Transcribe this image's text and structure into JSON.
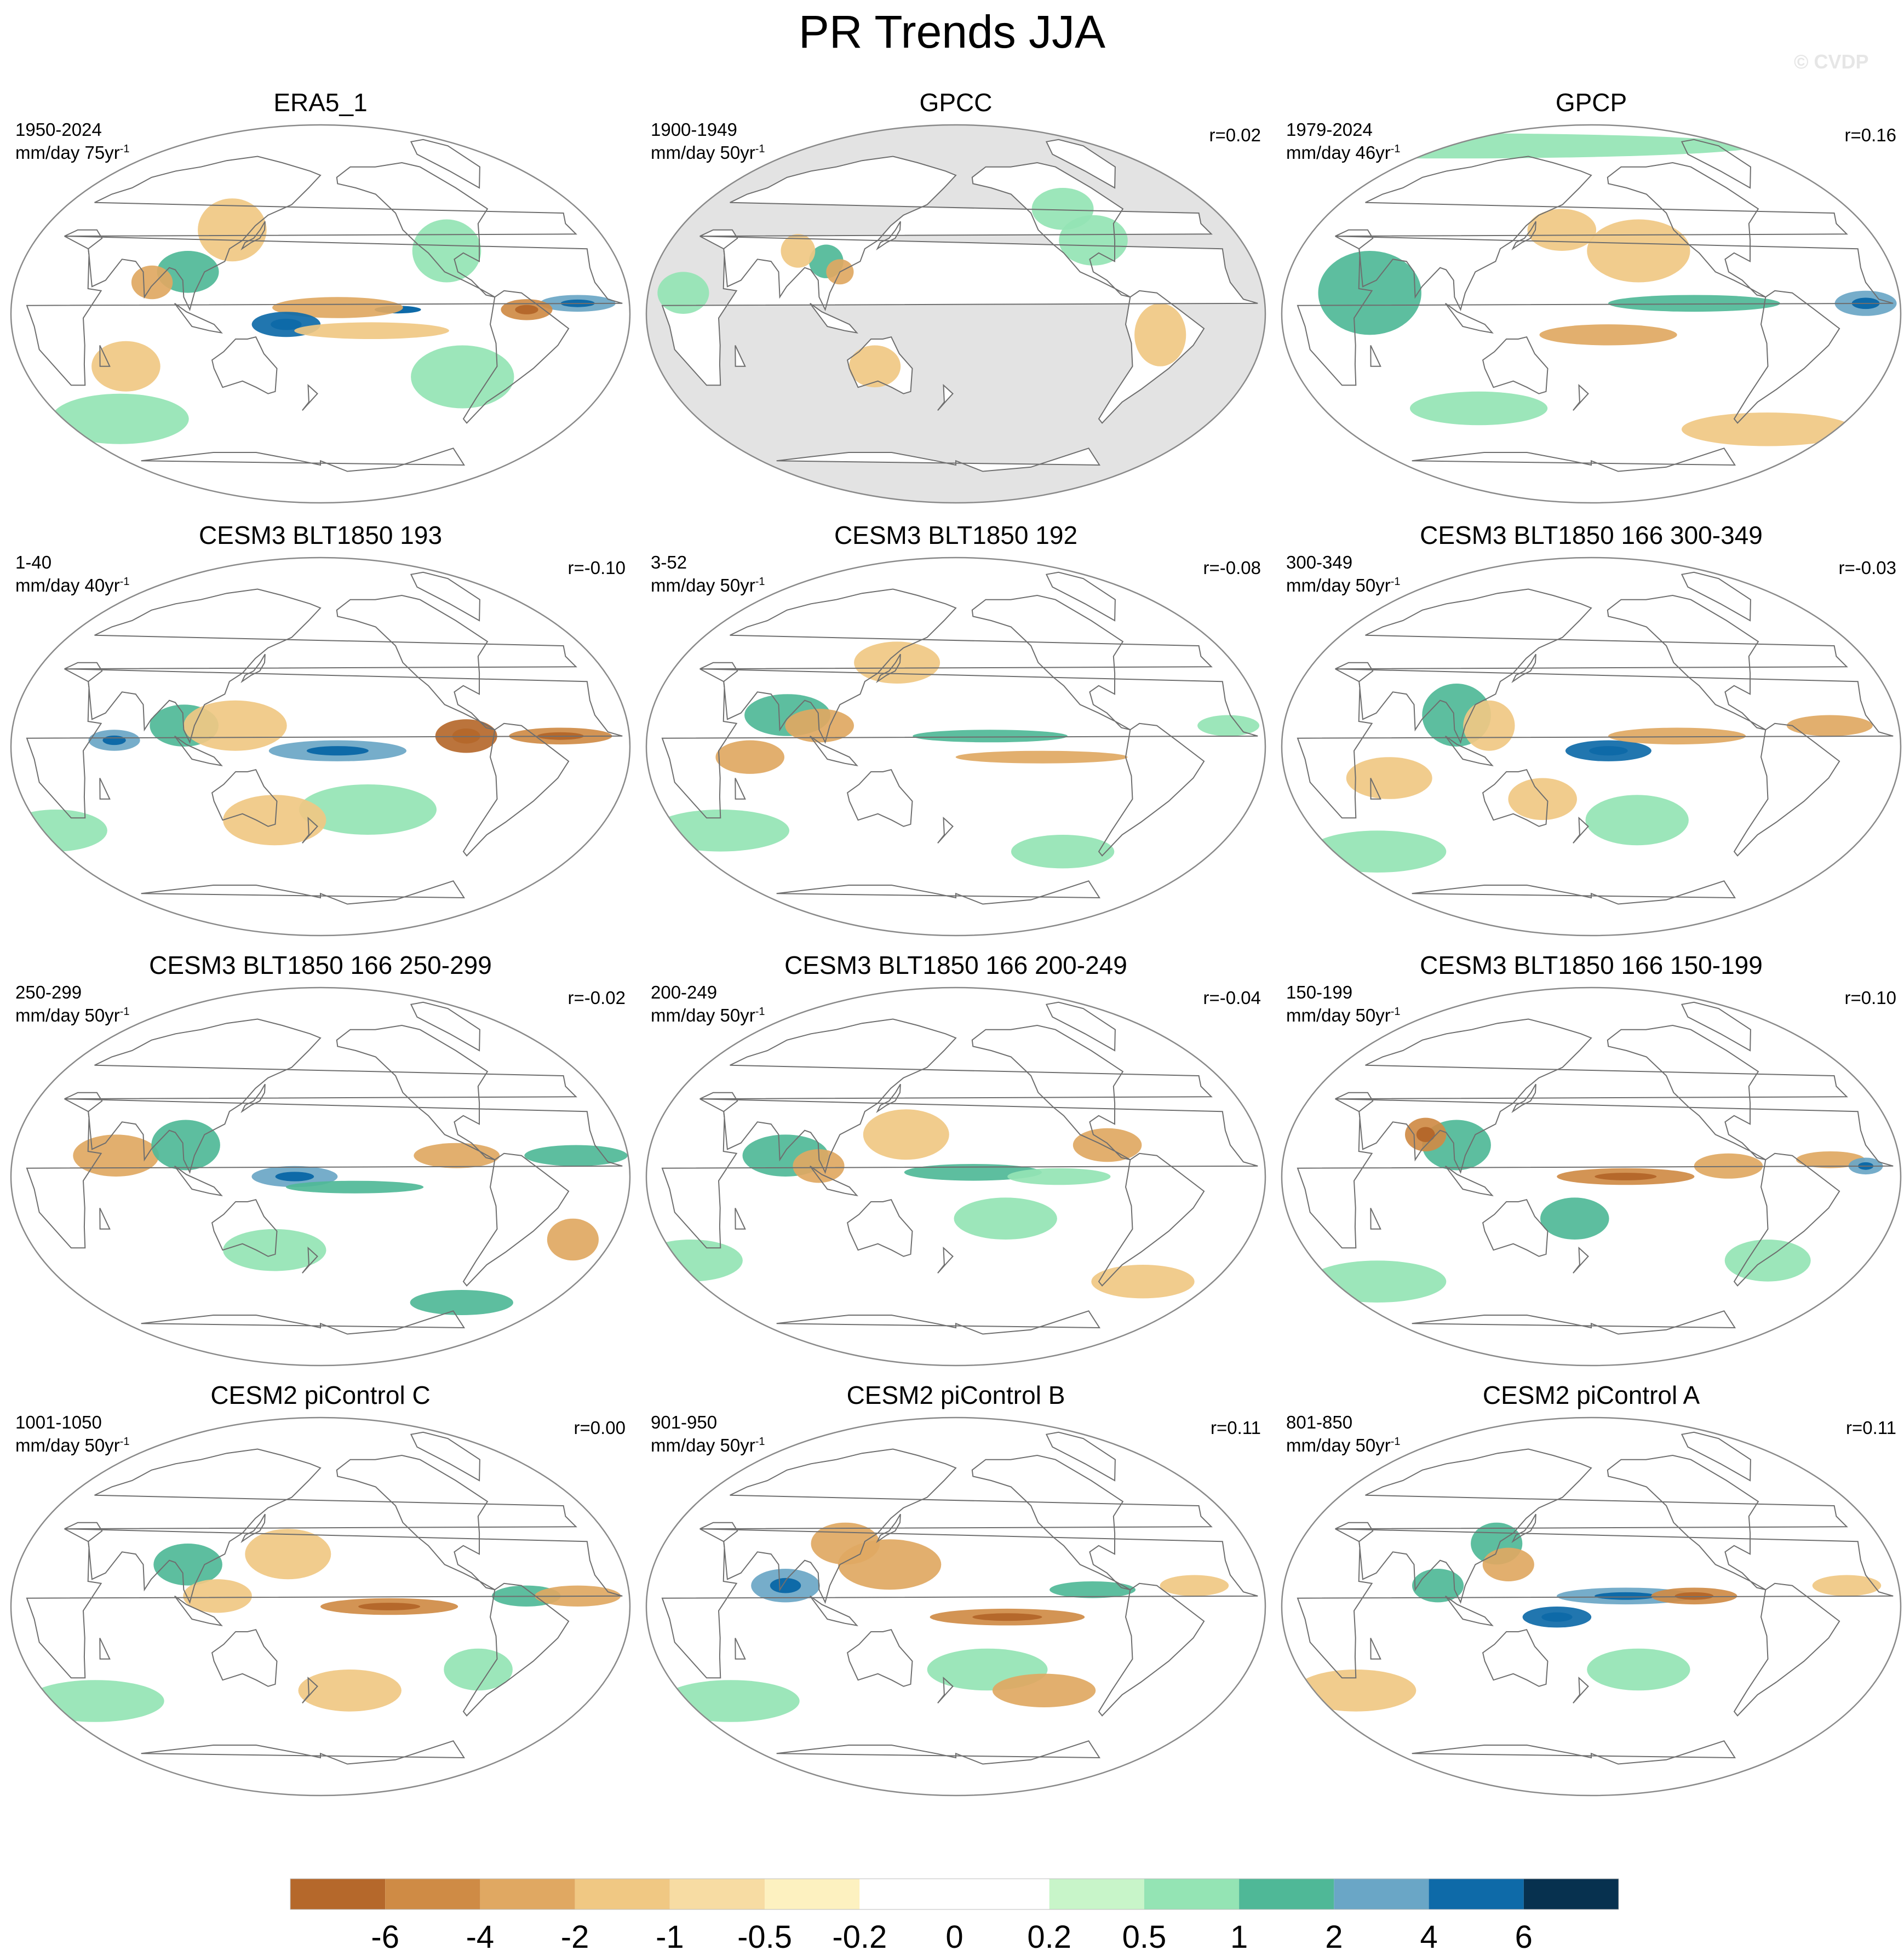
{
  "title": "PR Trends JJA",
  "watermark": "© CVDP",
  "colors": {
    "land_mask": "#e3e3e3",
    "coast": "#6e6e6e",
    "border": "#8a8a8a"
  },
  "colorbar": {
    "colors": [
      "#b5682b",
      "#cf8b45",
      "#e0a862",
      "#f0c883",
      "#f7dca3",
      "#fdf1c0",
      "#ffffff",
      "#ffffff",
      "#c8f5c9",
      "#94e4b4",
      "#4fb897",
      "#6aa6c6",
      "#0e6aa8",
      "#07314f"
    ],
    "labels": [
      "-6",
      "-4",
      "-2",
      "-1",
      "-0.5",
      "-0.2",
      "0",
      "0.2",
      "0.5",
      "1",
      "2",
      "4",
      "6"
    ]
  },
  "panels": [
    {
      "title": "ERA5_1",
      "period": "1950-2024",
      "units": "mm/day 75yr",
      "units_exp": "-1",
      "corr": "",
      "land_masked": false,
      "blobs": [
        [
          -135,
          2,
          30,
          4,
          7
        ],
        [
          -170,
          3,
          38,
          5,
          -2
        ],
        [
          160,
          -5,
          20,
          6,
          4
        ],
        [
          -30,
          5,
          22,
          4,
          3
        ],
        [
          -60,
          2,
          15,
          5,
          -3
        ],
        [
          100,
          20,
          18,
          10,
          2
        ],
        [
          80,
          15,
          12,
          8,
          -2
        ],
        [
          -150,
          -8,
          45,
          4,
          -1
        ],
        [
          -90,
          -30,
          30,
          15,
          1
        ],
        [
          30,
          -50,
          40,
          12,
          1
        ],
        [
          120,
          40,
          20,
          15,
          -1
        ],
        [
          -100,
          30,
          20,
          15,
          1
        ],
        [
          60,
          -25,
          20,
          12,
          -1
        ]
      ]
    },
    {
      "title": "GPCC",
      "period": "1900-1949",
      "units": "mm/day 50yr",
      "units_exp": "-1",
      "corr": "r=0.02",
      "land_masked": true,
      "blobs": [
        [
          100,
          25,
          10,
          8,
          2
        ],
        [
          110,
          20,
          8,
          6,
          -2
        ],
        [
          -90,
          35,
          20,
          12,
          1
        ],
        [
          -60,
          -10,
          15,
          15,
          -1
        ],
        [
          20,
          10,
          15,
          10,
          1
        ],
        [
          80,
          30,
          10,
          8,
          -1
        ],
        [
          130,
          -25,
          15,
          10,
          -1
        ],
        [
          -100,
          50,
          18,
          10,
          1
        ]
      ]
    },
    {
      "title": "GPCP",
      "period": "1979-2024",
      "units": "mm/day 46yr",
      "units_exp": "-1",
      "corr": "r=0.16",
      "land_masked": false,
      "blobs": [
        [
          0,
          80,
          180,
          6,
          1
        ],
        [
          50,
          10,
          30,
          20,
          2
        ],
        [
          -120,
          5,
          50,
          4,
          2
        ],
        [
          -170,
          -10,
          40,
          5,
          -2
        ],
        [
          -40,
          -55,
          50,
          8,
          -1
        ],
        [
          100,
          -45,
          40,
          8,
          1
        ],
        [
          -150,
          30,
          30,
          15,
          -1
        ],
        [
          -20,
          5,
          18,
          6,
          3
        ],
        [
          160,
          40,
          20,
          10,
          -1
        ]
      ]
    },
    {
      "title": "CESM3 BLT1850 193",
      "period": "1-40",
      "units": "mm/day 40yr",
      "units_exp": "-1",
      "corr": "r=-0.10",
      "land_masked": false,
      "blobs": [
        [
          -170,
          -2,
          40,
          5,
          3
        ],
        [
          -95,
          5,
          18,
          8,
          -4
        ],
        [
          -40,
          5,
          30,
          4,
          -3
        ],
        [
          100,
          10,
          20,
          10,
          2
        ],
        [
          60,
          3,
          15,
          5,
          3
        ],
        [
          130,
          10,
          30,
          12,
          -1
        ],
        [
          -150,
          -30,
          40,
          12,
          1
        ],
        [
          150,
          -35,
          30,
          12,
          -1
        ],
        [
          0,
          -40,
          30,
          10,
          1
        ]
      ]
    },
    {
      "title": "CESM3 BLT1850 192",
      "period": "3-52",
      "units": "mm/day 50yr",
      "units_exp": "-1",
      "corr": "r=-0.08",
      "land_masked": false,
      "blobs": [
        [
          -160,
          5,
          45,
          3,
          2
        ],
        [
          -130,
          -5,
          50,
          3,
          -2
        ],
        [
          80,
          15,
          25,
          10,
          2
        ],
        [
          100,
          10,
          20,
          8,
          -2
        ],
        [
          60,
          -5,
          20,
          8,
          -2
        ],
        [
          20,
          -40,
          40,
          10,
          1
        ],
        [
          -100,
          -50,
          30,
          8,
          1
        ],
        [
          140,
          40,
          25,
          10,
          -1
        ],
        [
          -20,
          10,
          18,
          5,
          1
        ]
      ]
    },
    {
      "title": "CESM3 BLT1850 166 300-349",
      "period": "300-349",
      "units": "mm/day 50yr",
      "units_exp": "-1",
      "corr": "r=-0.03",
      "land_masked": false,
      "blobs": [
        [
          -170,
          -2,
          25,
          5,
          4
        ],
        [
          -130,
          5,
          40,
          4,
          -2
        ],
        [
          100,
          15,
          20,
          15,
          2
        ],
        [
          120,
          10,
          15,
          12,
          -1
        ],
        [
          -40,
          10,
          25,
          5,
          -2
        ],
        [
          60,
          -15,
          25,
          10,
          -1
        ],
        [
          -150,
          -35,
          30,
          12,
          1
        ],
        [
          20,
          -50,
          40,
          10,
          1
        ],
        [
          150,
          -25,
          20,
          10,
          -1
        ]
      ]
    },
    {
      "title": "CESM3 BLT1850 166 250-299",
      "period": "250-299",
      "units": "mm/day 50yr",
      "units_exp": "-1",
      "corr": "r=-0.02",
      "land_masked": false,
      "blobs": [
        [
          165,
          0,
          25,
          5,
          3
        ],
        [
          -160,
          -5,
          40,
          3,
          2
        ],
        [
          -100,
          10,
          25,
          6,
          -2
        ],
        [
          -30,
          10,
          30,
          5,
          2
        ],
        [
          60,
          10,
          25,
          10,
          -2
        ],
        [
          100,
          15,
          20,
          12,
          2
        ],
        [
          -20,
          -30,
          15,
          10,
          -2
        ],
        [
          150,
          -35,
          30,
          10,
          1
        ],
        [
          -60,
          -60,
          30,
          6,
          2
        ]
      ]
    },
    {
      "title": "CESM3 BLT1850 166 200-249",
      "period": "200-249",
      "units": "mm/day 50yr",
      "units_exp": "-1",
      "corr": "r=-0.04",
      "land_masked": false,
      "blobs": [
        [
          -170,
          2,
          40,
          4,
          2
        ],
        [
          -120,
          0,
          30,
          4,
          1
        ],
        [
          80,
          10,
          25,
          10,
          2
        ],
        [
          100,
          5,
          15,
          8,
          -2
        ],
        [
          -90,
          15,
          20,
          8,
          -2
        ],
        [
          -150,
          -20,
          30,
          10,
          1
        ],
        [
          150,
          20,
          25,
          12,
          -1
        ],
        [
          0,
          -40,
          30,
          10,
          1
        ],
        [
          -40,
          -50,
          30,
          8,
          -1
        ]
      ]
    },
    {
      "title": "CESM3 BLT1850 166 150-199",
      "period": "150-199",
      "units": "mm/day 50yr",
      "units_exp": "-1",
      "corr": "r=0.10",
      "land_masked": false,
      "blobs": [
        [
          -160,
          0,
          40,
          4,
          -3
        ],
        [
          -100,
          5,
          20,
          6,
          -2
        ],
        [
          -40,
          8,
          20,
          4,
          -2
        ],
        [
          -20,
          5,
          10,
          4,
          3
        ],
        [
          100,
          15,
          20,
          12,
          2
        ],
        [
          80,
          20,
          12,
          8,
          -3
        ],
        [
          170,
          -20,
          20,
          10,
          2
        ],
        [
          -60,
          -40,
          25,
          10,
          1
        ],
        [
          20,
          -50,
          40,
          10,
          1
        ]
      ]
    },
    {
      "title": "CESM2 piControl C",
      "period": "1001-1050",
      "units": "mm/day 50yr",
      "units_exp": "-1",
      "corr": "r=0.00",
      "land_masked": false,
      "blobs": [
        [
          -140,
          0,
          40,
          4,
          -3
        ],
        [
          -60,
          5,
          20,
          5,
          2
        ],
        [
          -30,
          5,
          25,
          5,
          -2
        ],
        [
          100,
          20,
          20,
          10,
          2
        ],
        [
          120,
          5,
          20,
          8,
          -1
        ],
        [
          160,
          25,
          25,
          12,
          -1
        ],
        [
          -160,
          -40,
          30,
          10,
          -1
        ],
        [
          20,
          -45,
          40,
          10,
          1
        ],
        [
          -80,
          -30,
          20,
          10,
          1
        ]
      ]
    },
    {
      "title": "CESM2 piControl B",
      "period": "901-950",
      "units": "mm/day 50yr",
      "units_exp": "-1",
      "corr": "r=0.11",
      "land_masked": false,
      "blobs": [
        [
          -150,
          -5,
          45,
          4,
          -3
        ],
        [
          -100,
          8,
          25,
          4,
          2
        ],
        [
          80,
          10,
          20,
          8,
          3
        ],
        [
          110,
          30,
          20,
          10,
          -2
        ],
        [
          140,
          20,
          30,
          12,
          -2
        ],
        [
          -160,
          -30,
          35,
          10,
          1
        ],
        [
          -120,
          -40,
          30,
          8,
          -2
        ],
        [
          20,
          -45,
          40,
          10,
          1
        ],
        [
          -40,
          10,
          20,
          5,
          -1
        ]
      ]
    },
    {
      "title": "CESM2 piControl A",
      "period": "801-850",
      "units": "mm/day 50yr",
      "units_exp": "-1",
      "corr": "r=0.11",
      "land_masked": false,
      "blobs": [
        [
          -160,
          5,
          40,
          4,
          3
        ],
        [
          -120,
          5,
          25,
          4,
          -3
        ],
        [
          160,
          -5,
          20,
          5,
          4
        ],
        [
          120,
          30,
          15,
          10,
          2
        ],
        [
          130,
          20,
          15,
          8,
          -2
        ],
        [
          90,
          10,
          15,
          8,
          2
        ],
        [
          -150,
          -30,
          30,
          10,
          1
        ],
        [
          20,
          -40,
          35,
          10,
          -1
        ],
        [
          -30,
          10,
          20,
          5,
          -1
        ]
      ]
    }
  ]
}
